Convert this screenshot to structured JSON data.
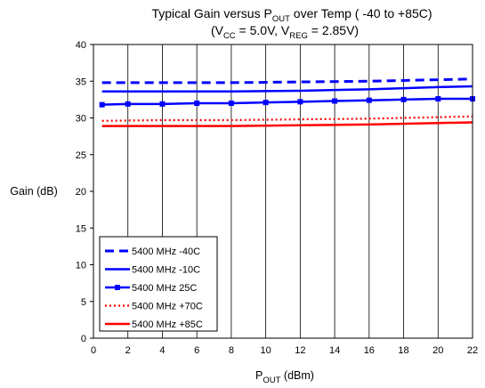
{
  "chart_data": {
    "type": "line",
    "title": "Typical Gain versus P",
    "title_sub": "OUT",
    "title_tail": " over Temp ( -40 to +85C)",
    "subtitle": {
      "open": "(V",
      "vcc_sub": "CC",
      "mid": " = 5.0V, V",
      "vreg_sub": "REG",
      "close": " = 2.85V)"
    },
    "ylabel": "Gain (dB)",
    "xlabel": "P",
    "xlabel_sub": "OUT",
    "xlabel_tail": " (dBm)",
    "xlim": [
      0,
      22
    ],
    "ylim": [
      0,
      40
    ],
    "xticks": [
      0,
      2,
      4,
      6,
      8,
      10,
      12,
      14,
      16,
      18,
      20,
      22
    ],
    "yticks": [
      0,
      5,
      10,
      15,
      20,
      25,
      30,
      35,
      40
    ],
    "grid": "vertical",
    "legend_position": "bottom-left",
    "series": [
      {
        "name": "5400 MHz -40C",
        "color": "#0000ff",
        "style": "dashed",
        "x": [
          0.5,
          4,
          8,
          12,
          16,
          20,
          22
        ],
        "y": [
          34.8,
          34.8,
          34.8,
          34.9,
          35.0,
          35.2,
          35.3
        ]
      },
      {
        "name": "5400 MHz -10C",
        "color": "#0000ff",
        "style": "solid",
        "x": [
          0.5,
          4,
          8,
          12,
          16,
          20,
          22
        ],
        "y": [
          33.6,
          33.6,
          33.6,
          33.7,
          33.9,
          34.2,
          34.3
        ]
      },
      {
        "name": "5400 MHz 25C",
        "color": "#0000ff",
        "style": "marker",
        "x": [
          0.5,
          2,
          4,
          6,
          8,
          10,
          12,
          14,
          16,
          18,
          20,
          22
        ],
        "y": [
          31.8,
          31.9,
          31.9,
          32.0,
          32.0,
          32.1,
          32.2,
          32.3,
          32.4,
          32.5,
          32.6,
          32.6
        ]
      },
      {
        "name": "5400 MHz +70C",
        "color": "#ff0000",
        "style": "dotted",
        "x": [
          0.5,
          4,
          8,
          12,
          16,
          20,
          22
        ],
        "y": [
          29.6,
          29.7,
          29.7,
          29.8,
          29.9,
          30.1,
          30.2
        ]
      },
      {
        "name": "5400 MHz +85C",
        "color": "#ff0000",
        "style": "solid",
        "x": [
          0.5,
          4,
          8,
          12,
          16,
          20,
          22
        ],
        "y": [
          28.9,
          28.9,
          28.9,
          29.0,
          29.1,
          29.3,
          29.4
        ]
      }
    ]
  }
}
